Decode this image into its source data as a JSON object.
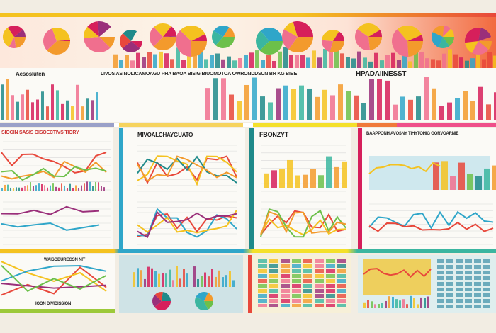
{
  "palette": [
    "#e8483b",
    "#f4c21f",
    "#2fa6c9",
    "#1f8a8a",
    "#d61f5b",
    "#f39a2c",
    "#6cc04a",
    "#9a2f7a",
    "#f06f8e",
    "#3bb6a0"
  ],
  "banner": {
    "circles_count_icon": "pie-chart-icon"
  },
  "header": {
    "left_label": "Aesosluten",
    "subtitle": "LIVOS AS NOLICAMOAGU PHA BAOA BISIG BIUOMOTOA OWRONDDSUN BR KG BIBE",
    "title": "HPADAIINESST"
  },
  "panels": {
    "p1_title": "SIOGIN SASIS OISOECTIVS TIORY",
    "p2_title": "MIVOALCHAYGUATO",
    "p3_title": "FBONZYT",
    "p4_title": "BAAPPONH AVOSNY TIHYTOHIG GORVOARNIE",
    "p5_title": "WAISOBUREGSN NIT",
    "p5_footer": "IOON DIVIDISSION"
  },
  "colors": {
    "background": "#f2ede3",
    "accent_yellow": "#f4c21f",
    "accent_red": "#e8483b",
    "accent_teal": "#2fa6c9"
  }
}
